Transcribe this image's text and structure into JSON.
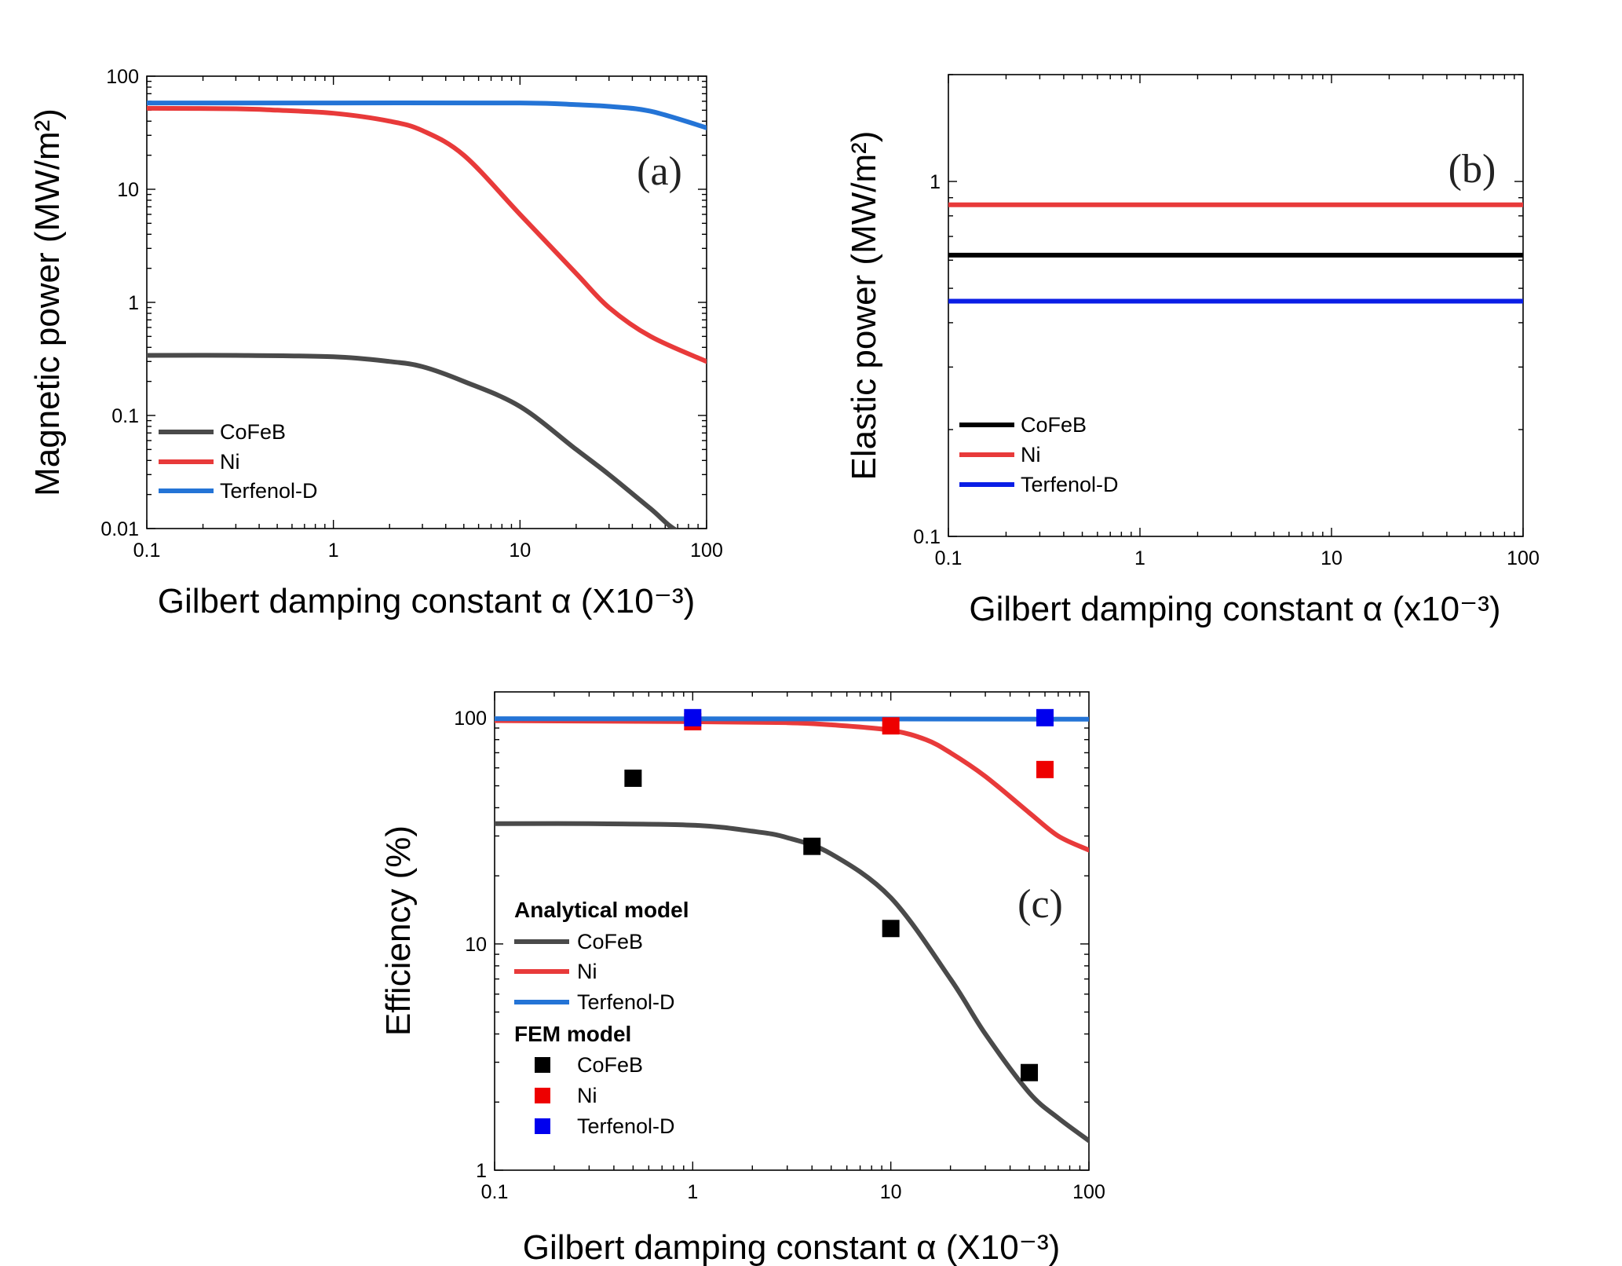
{
  "chart_data": [
    {
      "type": "line",
      "panel_label": "(a)",
      "xlabel": "Gilbert damping constant α (X10⁻³)",
      "ylabel": "Magnetic power (MW/m²)",
      "xscale": "log",
      "yscale": "log",
      "xlim": [
        0.1,
        100
      ],
      "ylim": [
        0.01,
        100
      ],
      "xticks": [
        "0.1",
        "1",
        "10",
        "100"
      ],
      "yticks": [
        "0.01",
        "0.1",
        "1",
        "10",
        "100"
      ],
      "legend_position": "bottom-left",
      "series": [
        {
          "name": "CoFeB",
          "color": "#4a4a4a",
          "x": [
            0.1,
            0.3,
            1,
            2,
            3,
            5,
            10,
            20,
            30,
            50,
            70,
            100
          ],
          "y": [
            0.34,
            0.34,
            0.33,
            0.3,
            0.27,
            0.2,
            0.12,
            0.05,
            0.03,
            0.015,
            0.0095,
            0.0085
          ]
        },
        {
          "name": "Ni",
          "color": "#e83a3a",
          "x": [
            0.1,
            0.3,
            0.5,
            1,
            2,
            3,
            5,
            10,
            20,
            30,
            50,
            100
          ],
          "y": [
            52,
            51.5,
            50,
            47,
            40,
            33,
            20,
            6,
            1.8,
            0.9,
            0.5,
            0.3
          ]
        },
        {
          "name": "Terfenol-D",
          "color": "#2474d6",
          "x": [
            0.1,
            1,
            10,
            20,
            30,
            50,
            100
          ],
          "y": [
            58,
            58,
            58,
            56,
            54,
            49,
            35
          ]
        }
      ]
    },
    {
      "type": "line",
      "panel_label": "(b)",
      "xlabel": "Gilbert damping constant α (x10⁻³)",
      "ylabel": "Elastic power (MW/m²)",
      "xscale": "log",
      "yscale": "log",
      "xlim": [
        0.1,
        100
      ],
      "ylim": [
        0.1,
        2
      ],
      "xticks": [
        "0.1",
        "1",
        "10",
        "100"
      ],
      "yticks": [
        "0.1",
        "1"
      ],
      "legend_position": "bottom-left",
      "series": [
        {
          "name": "CoFeB",
          "color": "#000000",
          "x": [
            0.1,
            100
          ],
          "y": [
            0.62,
            0.62
          ]
        },
        {
          "name": "Ni",
          "color": "#e83a3a",
          "x": [
            0.1,
            100
          ],
          "y": [
            0.86,
            0.86
          ]
        },
        {
          "name": "Terfenol-D",
          "color": "#0a1ee6",
          "x": [
            0.1,
            100
          ],
          "y": [
            0.46,
            0.46
          ]
        }
      ]
    },
    {
      "type": "line",
      "panel_label": "(c)",
      "xlabel": "Gilbert damping constant α (X10⁻³)",
      "ylabel": "Efficiency (%)",
      "xscale": "log",
      "yscale": "log",
      "xlim": [
        0.1,
        100
      ],
      "ylim": [
        1,
        130
      ],
      "xticks": [
        "0.1",
        "1",
        "10",
        "100"
      ],
      "yticks": [
        "1",
        "10",
        "100"
      ],
      "legend_position": "left",
      "legend_group_analytical": "Analytical model",
      "legend_group_fem": "FEM model",
      "series": [
        {
          "name": "CoFeB",
          "group": "analytical",
          "color": "#4a4a4a",
          "x": [
            0.1,
            0.3,
            1,
            2,
            3,
            5,
            10,
            20,
            30,
            50,
            70,
            100
          ],
          "y": [
            34,
            34,
            33.5,
            31.5,
            29.5,
            25,
            16,
            7,
            4,
            2.2,
            1.7,
            1.35
          ]
        },
        {
          "name": "Ni",
          "group": "analytical",
          "color": "#e83a3a",
          "x": [
            0.1,
            1,
            3,
            5,
            10,
            15,
            20,
            30,
            50,
            70,
            100
          ],
          "y": [
            97,
            96,
            95,
            93,
            88,
            80,
            70,
            55,
            38,
            30,
            26
          ]
        },
        {
          "name": "Terfenol-D",
          "group": "analytical",
          "color": "#2474d6",
          "x": [
            0.1,
            100
          ],
          "y": [
            99,
            98.5
          ]
        },
        {
          "name": "CoFeB",
          "group": "fem",
          "type": "scatter",
          "color": "#000000",
          "x": [
            0.5,
            4,
            10,
            50
          ],
          "y": [
            54,
            27,
            11.7,
            2.7
          ]
        },
        {
          "name": "Ni",
          "group": "fem",
          "type": "scatter",
          "color": "#ee0000",
          "x": [
            1,
            10,
            60
          ],
          "y": [
            96,
            92,
            59
          ]
        },
        {
          "name": "Terfenol-D",
          "group": "fem",
          "type": "scatter",
          "color": "#0000ee",
          "x": [
            1,
            60
          ],
          "y": [
            100,
            100
          ]
        }
      ]
    }
  ]
}
